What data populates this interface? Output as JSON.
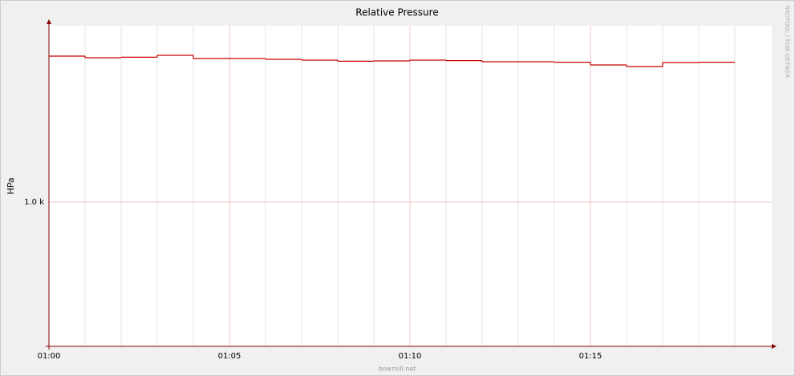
{
  "chart_data": {
    "type": "step",
    "title": "Relative Pressure",
    "y_label": "HPa",
    "watermark": "RRDTOOL / TOBI OETIKER",
    "footer": "bowmill.net",
    "x": [
      1,
      2,
      3,
      4,
      5,
      6,
      7,
      8,
      9,
      10,
      11,
      12,
      13,
      14,
      15,
      16,
      17,
      18,
      19
    ],
    "series": [
      {
        "name": "Relative Pressure",
        "color": "#cc0000",
        "values": [
          1009.1,
          1009.0,
          1009.03,
          1009.15,
          1008.95,
          1008.95,
          1008.9,
          1008.85,
          1008.78,
          1008.8,
          1008.85,
          1008.82,
          1008.75,
          1008.75,
          1008.72,
          1008.55,
          1008.45,
          1008.7,
          1008.72
        ]
      }
    ],
    "xlim": [
      0,
      20
    ],
    "xticks": [
      {
        "value": 0,
        "label": "01:00"
      },
      {
        "value": 5,
        "label": "01:05"
      },
      {
        "value": 10,
        "label": "01:10"
      },
      {
        "value": 15,
        "label": "01:15"
      }
    ],
    "ylim": [
      991,
      1011
    ],
    "yticks": [
      {
        "value": 1000,
        "label": "1.0 k"
      }
    ],
    "grid": true
  }
}
